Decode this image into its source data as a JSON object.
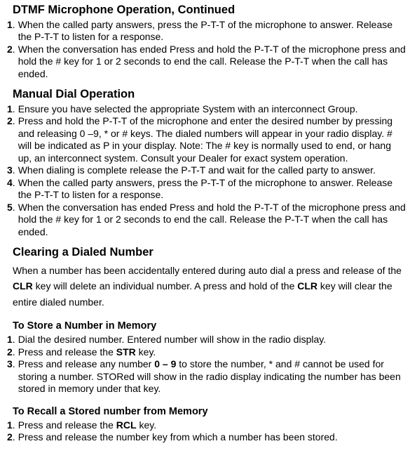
{
  "section1": {
    "title": "DTMF Microphone Operation, Continued",
    "items": [
      {
        "num": "1",
        "html": "When the called party answers, press the P-T-T of the microphone to answer. Release the P-T-T to listen for a response."
      },
      {
        "num": "2",
        "html": "When the conversation has ended Press and hold the P-T-T of the microphone press and hold the # key for 1 or 2 seconds to end the call. Release the P-T-T when the call has ended."
      }
    ]
  },
  "section2": {
    "title": "Manual Dial Operation",
    "items": [
      {
        "num": "1",
        "html": "Ensure you have selected the appropriate System with an interconnect Group."
      },
      {
        "num": "2",
        "html": "Press and hold the P-T-T of the microphone and enter the desired number by pressing and releasing 0 –9, * or # keys. The dialed numbers will appear in your radio display. # will be indicated as P in your display. Note: The # key is normally used to end, or hang up, an interconnect system. Consult your Dealer for exact system operation."
      },
      {
        "num": "3",
        "html": "When dialing is complete release the P-T-T and wait for the called party to answer."
      },
      {
        "num": "4",
        "html": "When the called party answers, press the P-T-T of the microphone to answer. Release the P-T-T to listen for a response."
      },
      {
        "num": "5",
        "html": "When the conversation has ended Press and hold the P-T-T of the microphone press and hold the # key for 1 or 2 seconds to end the call. Release the P-T-T when the call has ended."
      }
    ]
  },
  "section3": {
    "title": "Clearing a Dialed Number",
    "para_html": "When a number has been accidentally entered during auto dial a press and release of the <b>CLR</b> key will delete an individual number. A press and hold of the <b>CLR</b> key will clear the entire dialed number."
  },
  "section4": {
    "title": "To Store a Number in Memory",
    "items": [
      {
        "num": "1",
        "html": "Dial the desired number. Entered number will show in the radio display."
      },
      {
        "num": "2",
        "html": "Press and release the <b>STR</b> key."
      },
      {
        "num": "3",
        "html": "Press and release any number <b>0 – 9</b> to store the number, * and # cannot be used for storing a number. STORed will show in the radio display indicating the number has been stored in memory under that key."
      }
    ]
  },
  "section5": {
    "title": "To Recall a Stored number from Memory",
    "items": [
      {
        "num": "1",
        "html": "Press and release the <b>RCL</b> key."
      },
      {
        "num": "2",
        "html": "Press and release the number key from which a number has been stored."
      }
    ]
  }
}
